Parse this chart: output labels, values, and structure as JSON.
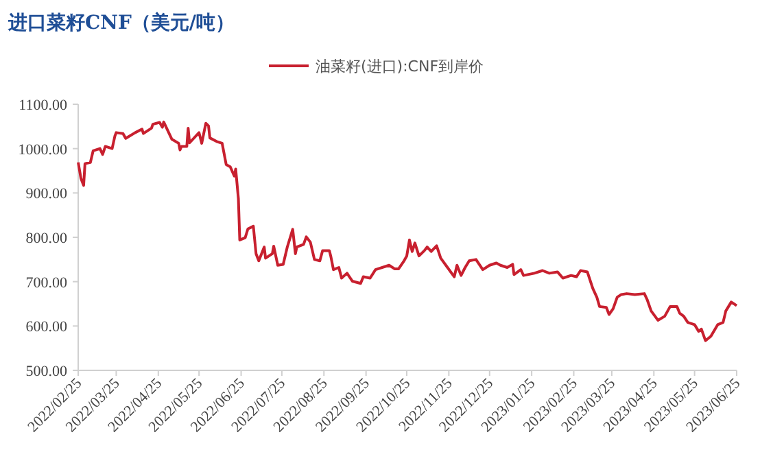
{
  "chart_data": {
    "type": "line",
    "title": "进口菜籽CNF（美元/吨）",
    "legend": "top",
    "xlim": [
      "2022-02-25",
      "2023-06-25"
    ],
    "xticks": [
      {
        "value": "2022-02-25",
        "label": "2022/02/25"
      },
      {
        "value": "2022-03-25",
        "label": "2022/03/25"
      },
      {
        "value": "2022-04-25",
        "label": "2022/04/25"
      },
      {
        "value": "2022-05-25",
        "label": "2022/05/25"
      },
      {
        "value": "2022-06-25",
        "label": "2022/06/25"
      },
      {
        "value": "2022-07-25",
        "label": "2022/07/25"
      },
      {
        "value": "2022-08-25",
        "label": "2022/08/25"
      },
      {
        "value": "2022-09-25",
        "label": "2022/09/25"
      },
      {
        "value": "2022-10-25",
        "label": "2022/10/25"
      },
      {
        "value": "2022-11-25",
        "label": "2022/11/25"
      },
      {
        "value": "2022-12-25",
        "label": "2022/12/25"
      },
      {
        "value": "2023-01-25",
        "label": "2023/01/25"
      },
      {
        "value": "2023-02-25",
        "label": "2023/02/25"
      },
      {
        "value": "2023-03-25",
        "label": "2023/03/25"
      },
      {
        "value": "2023-04-25",
        "label": "2023/04/25"
      },
      {
        "value": "2023-05-25",
        "label": "2023/05/25"
      },
      {
        "value": "2023-06-25",
        "label": "2023/06/25"
      }
    ],
    "ylim": [
      500,
      1100
    ],
    "yticks": [
      {
        "value": 500,
        "label": "500.00"
      },
      {
        "value": 600,
        "label": "600.00"
      },
      {
        "value": 700,
        "label": "700.00"
      },
      {
        "value": 800,
        "label": "800.00"
      },
      {
        "value": 900,
        "label": "900.00"
      },
      {
        "value": 1000,
        "label": "1000.00"
      },
      {
        "value": 1100,
        "label": "1100.00"
      }
    ],
    "x": [
      "2022-02-25",
      "2022-02-27",
      "2022-03-01",
      "2022-03-02",
      "2022-03-06",
      "2022-03-08",
      "2022-03-13",
      "2022-03-15",
      "2022-03-17",
      "2022-03-22",
      "2022-03-24",
      "2022-03-25",
      "2022-03-30",
      "2022-04-01",
      "2022-04-08",
      "2022-04-13",
      "2022-04-14",
      "2022-04-20",
      "2022-04-21",
      "2022-04-26",
      "2022-04-28",
      "2022-04-29",
      "2022-05-05",
      "2022-05-10",
      "2022-05-11",
      "2022-05-12",
      "2022-05-16",
      "2022-05-17",
      "2022-05-18",
      "2022-05-25",
      "2022-05-27",
      "2022-05-30",
      "2022-06-01",
      "2022-06-02",
      "2022-06-07",
      "2022-06-11",
      "2022-06-14",
      "2022-06-17",
      "2022-06-20",
      "2022-06-21",
      "2022-06-23",
      "2022-06-24",
      "2022-06-28",
      "2022-06-30",
      "2022-07-04",
      "2022-07-06",
      "2022-07-08",
      "2022-07-12",
      "2022-07-13",
      "2022-07-18",
      "2022-07-19",
      "2022-07-22",
      "2022-07-26",
      "2022-07-29",
      "2022-08-02",
      "2022-08-04",
      "2022-08-05",
      "2022-08-10",
      "2022-08-12",
      "2022-08-15",
      "2022-08-18",
      "2022-08-22",
      "2022-08-24",
      "2022-08-29",
      "2022-08-30",
      "2022-09-01",
      "2022-09-05",
      "2022-09-07",
      "2022-09-11",
      "2022-09-15",
      "2022-09-21",
      "2022-09-23",
      "2022-09-28",
      "2022-10-02",
      "2022-10-12",
      "2022-10-16",
      "2022-10-19",
      "2022-10-23",
      "2022-10-25",
      "2022-10-27",
      "2022-10-29",
      "2022-10-31",
      "2022-11-03",
      "2022-11-07",
      "2022-11-09",
      "2022-11-12",
      "2022-11-16",
      "2022-11-19",
      "2022-11-24",
      "2022-11-29",
      "2022-12-01",
      "2022-12-04",
      "2022-12-07",
      "2022-12-10",
      "2022-12-15",
      "2022-12-20",
      "2022-12-25",
      "2022-12-30",
      "2023-01-02",
      "2023-01-07",
      "2023-01-11",
      "2023-01-12",
      "2023-01-17",
      "2023-01-19",
      "2023-01-27",
      "2023-02-02",
      "2023-02-07",
      "2023-02-13",
      "2023-02-17",
      "2023-02-23",
      "2023-02-27",
      "2023-03-02",
      "2023-03-07",
      "2023-03-11",
      "2023-03-14",
      "2023-03-16",
      "2023-03-21",
      "2023-03-23",
      "2023-03-26",
      "2023-03-29",
      "2023-04-01",
      "2023-04-05",
      "2023-04-11",
      "2023-04-18",
      "2023-04-20",
      "2023-04-23",
      "2023-04-28",
      "2023-05-03",
      "2023-05-07",
      "2023-05-12",
      "2023-05-14",
      "2023-05-17",
      "2023-05-20",
      "2023-05-25",
      "2023-05-28",
      "2023-05-30",
      "2023-06-02",
      "2023-06-06",
      "2023-06-11",
      "2023-06-15",
      "2023-06-17",
      "2023-06-21",
      "2023-06-25"
    ],
    "series": [
      {
        "name": "油菜籽(进口):CNF到岸价",
        "color": "#c8202f",
        "values": [
          969,
          933,
          917,
          966,
          969,
          995,
          1000,
          987,
          1005,
          1000,
          1028,
          1036,
          1034,
          1023,
          1036,
          1044,
          1034,
          1046,
          1055,
          1059,
          1048,
          1060,
          1021,
          1012,
          997,
          1005,
          1005,
          1046,
          1013,
          1036,
          1012,
          1057,
          1051,
          1024,
          1016,
          1012,
          964,
          959,
          938,
          954,
          887,
          794,
          799,
          819,
          825,
          763,
          747,
          778,
          753,
          763,
          780,
          737,
          739,
          778,
          818,
          763,
          778,
          784,
          801,
          789,
          750,
          747,
          770,
          770,
          758,
          727,
          732,
          708,
          719,
          701,
          696,
          711,
          708,
          727,
          737,
          729,
          729,
          747,
          758,
          794,
          768,
          787,
          758,
          770,
          778,
          768,
          781,
          753,
          732,
          711,
          737,
          714,
          732,
          747,
          750,
          727,
          737,
          742,
          737,
          732,
          739,
          716,
          727,
          714,
          719,
          725,
          719,
          722,
          708,
          714,
          711,
          725,
          722,
          685,
          665,
          644,
          642,
          626,
          639,
          665,
          671,
          673,
          671,
          673,
          660,
          634,
          613,
          622,
          644,
          644,
          629,
          622,
          608,
          603,
          588,
          593,
          567,
          577,
          603,
          608,
          634,
          654,
          646
        ]
      }
    ]
  }
}
